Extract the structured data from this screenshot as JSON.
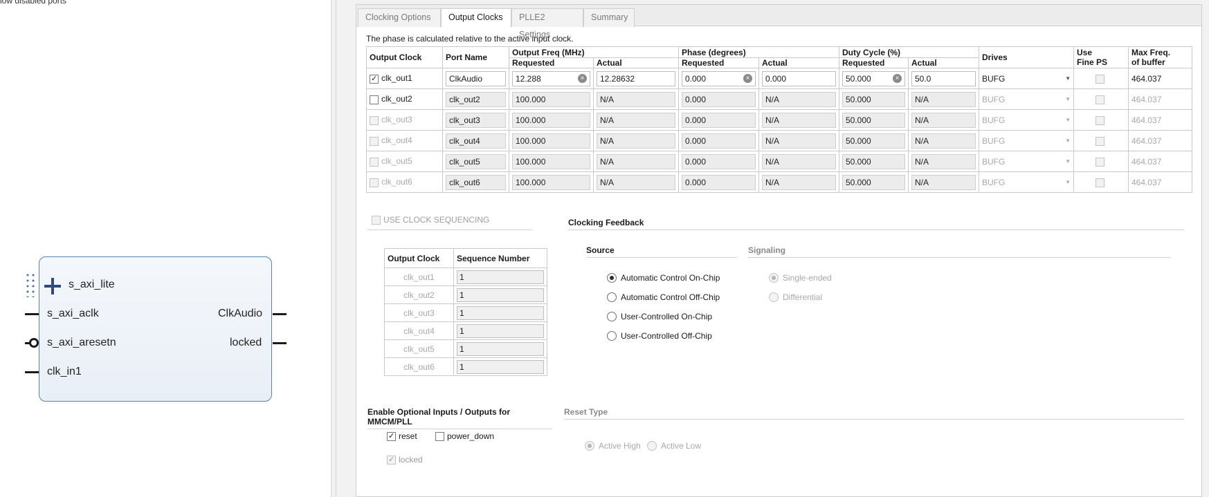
{
  "left": {
    "show_disabled_label": "how disabled ports",
    "ports_left": [
      "s_axi_lite",
      "s_axi_aclk",
      "s_axi_aresetn",
      "clk_in1"
    ],
    "ports_right": [
      "ClkAudio",
      "locked"
    ]
  },
  "tabs": [
    {
      "label": "Clocking Options"
    },
    {
      "label": "Output Clocks"
    },
    {
      "label": "PLLE2 Settings"
    },
    {
      "label": "Summary"
    }
  ],
  "phase_note": "The phase is calculated relative to the active input clock.",
  "clock_table": {
    "headers": {
      "output_clock": "Output Clock",
      "port_name": "Port Name",
      "output_freq": "Output Freq (MHz)",
      "phase": "Phase (degrees)",
      "duty": "Duty Cycle (%)",
      "requested": "Requested",
      "actual": "Actual",
      "drives": "Drives",
      "use_fine_ps_1": "Use",
      "use_fine_ps_2": "Fine PS",
      "max_freq_1": "Max Freq.",
      "max_freq_2": "of buffer"
    },
    "rows": [
      {
        "name": "clk_out1",
        "port": "ClkAudio",
        "freq_req": "12.288",
        "freq_act": "12.28632",
        "phase_req": "0.000",
        "phase_act": "0.000",
        "duty_req": "50.000",
        "duty_act": "50.0",
        "drives": "BUFG",
        "max": "464.037"
      },
      {
        "name": "clk_out2",
        "port": "clk_out2",
        "freq_req": "100.000",
        "freq_act": "N/A",
        "phase_req": "0.000",
        "phase_act": "N/A",
        "duty_req": "50.000",
        "duty_act": "N/A",
        "drives": "BUFG",
        "max": "464.037"
      },
      {
        "name": "clk_out3",
        "port": "clk_out3",
        "freq_req": "100.000",
        "freq_act": "N/A",
        "phase_req": "0.000",
        "phase_act": "N/A",
        "duty_req": "50.000",
        "duty_act": "N/A",
        "drives": "BUFG",
        "max": "464.037"
      },
      {
        "name": "clk_out4",
        "port": "clk_out4",
        "freq_req": "100.000",
        "freq_act": "N/A",
        "phase_req": "0.000",
        "phase_act": "N/A",
        "duty_req": "50.000",
        "duty_act": "N/A",
        "drives": "BUFG",
        "max": "464.037"
      },
      {
        "name": "clk_out5",
        "port": "clk_out5",
        "freq_req": "100.000",
        "freq_act": "N/A",
        "phase_req": "0.000",
        "phase_act": "N/A",
        "duty_req": "50.000",
        "duty_act": "N/A",
        "drives": "BUFG",
        "max": "464.037"
      },
      {
        "name": "clk_out6",
        "port": "clk_out6",
        "freq_req": "100.000",
        "freq_act": "N/A",
        "phase_req": "0.000",
        "phase_act": "N/A",
        "duty_req": "50.000",
        "duty_act": "N/A",
        "drives": "BUFG",
        "max": "464.037"
      }
    ]
  },
  "sequencing": {
    "checkbox_label": "USE CLOCK SEQUENCING",
    "headers": {
      "output_clock": "Output Clock",
      "seq_number": "Sequence Number"
    },
    "rows": [
      {
        "name": "clk_out1",
        "value": "1"
      },
      {
        "name": "clk_out2",
        "value": "1"
      },
      {
        "name": "clk_out3",
        "value": "1"
      },
      {
        "name": "clk_out4",
        "value": "1"
      },
      {
        "name": "clk_out5",
        "value": "1"
      },
      {
        "name": "clk_out6",
        "value": "1"
      }
    ]
  },
  "feedback": {
    "title": "Clocking Feedback",
    "source_title": "Source",
    "signaling_title": "Signaling",
    "source_options": [
      "Automatic Control On-Chip",
      "Automatic Control Off-Chip",
      "User-Controlled On-Chip",
      "User-Controlled Off-Chip"
    ],
    "signaling_options": [
      "Single-ended",
      "Differential"
    ]
  },
  "optional_io": {
    "title": "Enable Optional Inputs / Outputs for MMCM/PLL",
    "reset": "reset",
    "power_down": "power_down",
    "locked": "locked"
  },
  "reset_type": {
    "title": "Reset Type",
    "active_high": "Active High",
    "active_low": "Active Low"
  }
}
